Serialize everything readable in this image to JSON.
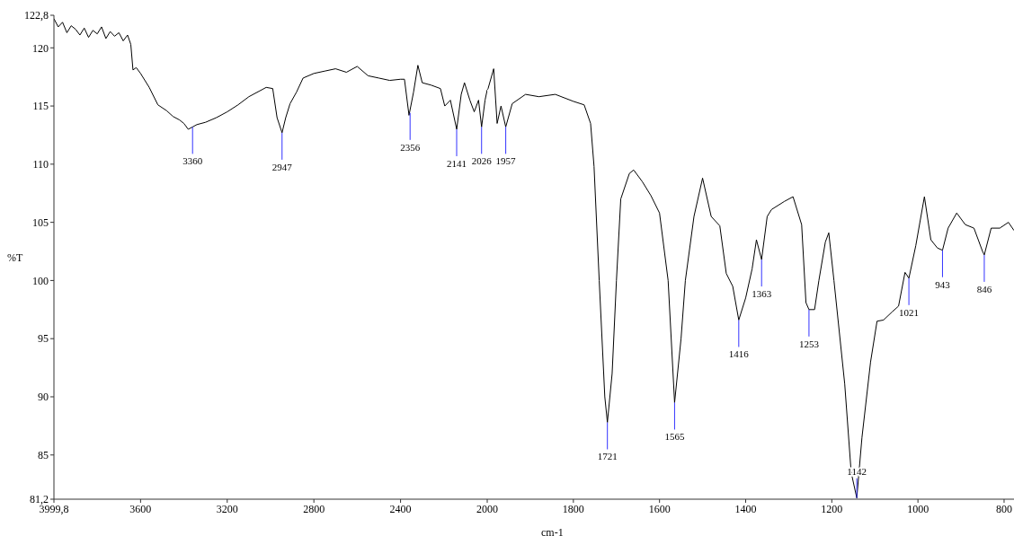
{
  "chart_data": [
    {
      "type": "line",
      "ylabel": "%T",
      "xlim": [
        3999.8,
        2000
      ],
      "ylim": [
        81.2,
        122.8
      ],
      "xticks": [
        {
          "value": 3999.8,
          "label": "3999,8"
        },
        3600,
        3200,
        2800,
        2400,
        2000
      ],
      "yticks": [
        {
          "value": 81.2,
          "label": "81,2"
        },
        85,
        90,
        95,
        100,
        105,
        110,
        115,
        120,
        {
          "value": 122.8,
          "label": "122,8"
        }
      ],
      "x": [
        3999.8,
        3980,
        3960,
        3940,
        3920,
        3900,
        3880,
        3860,
        3840,
        3820,
        3800,
        3780,
        3760,
        3740,
        3720,
        3700,
        3680,
        3660,
        3645,
        3635,
        3620,
        3600,
        3560,
        3520,
        3480,
        3450,
        3420,
        3400,
        3380,
        3360,
        3340,
        3300,
        3250,
        3200,
        3150,
        3100,
        3050,
        3020,
        2990,
        2970,
        2947,
        2930,
        2910,
        2880,
        2850,
        2800,
        2750,
        2700,
        2650,
        2600,
        2550,
        2500,
        2450,
        2400,
        2382,
        2361,
        2340,
        2320,
        2300,
        2260,
        2216,
        2196,
        2170,
        2141,
        2120,
        2105,
        2080,
        2060,
        2040,
        2026,
        2010,
        2000
      ],
      "series": [
        {
          "color": "#000000",
          "values": [
            122.5,
            121.8,
            122.2,
            121.3,
            121.9,
            121.6,
            121.1,
            121.7,
            120.9,
            121.5,
            121.2,
            121.8,
            120.8,
            121.4,
            121.0,
            121.3,
            120.6,
            121.1,
            120.3,
            118.1,
            118.3,
            117.8,
            116.6,
            115.1,
            114.6,
            114.1,
            113.8,
            113.5,
            113.0,
            113.2,
            113.4,
            113.6,
            114.0,
            114.5,
            115.1,
            115.8,
            116.3,
            116.6,
            116.5,
            114.0,
            112.7,
            114.0,
            115.2,
            116.2,
            117.4,
            117.8,
            118.0,
            118.2,
            117.9,
            118.4,
            117.6,
            117.4,
            117.2,
            117.3,
            117.3,
            114.2,
            116.2,
            118.5,
            117.0,
            116.8,
            116.5,
            115.0,
            115.5,
            113.0,
            116.0,
            117.0,
            115.5,
            114.5,
            115.5,
            113.2,
            115.5,
            116.4
          ]
        }
      ],
      "annotations": [
        {
          "text": "3360",
          "x": 3360,
          "y": 113.2
        },
        {
          "text": "2947",
          "x": 2947,
          "y": 112.7
        },
        {
          "text": "2356",
          "x": 2356,
          "y": 114.4
        },
        {
          "text": "2141",
          "x": 2141,
          "y": 113.0
        },
        {
          "text": "2026",
          "x": 2026,
          "y": 113.2
        }
      ]
    },
    {
      "type": "line",
      "xlabel": "cm-1",
      "tick_labels": "x",
      "xlim": [
        2000,
        777
      ],
      "ylim": [
        81.2,
        122.8
      ],
      "xticks": [
        1800,
        1600,
        1400,
        1200,
        1000,
        800
      ],
      "x": [
        2000,
        1998,
        1985,
        1977,
        1968,
        1957,
        1942,
        1911,
        1880,
        1842,
        1800,
        1775,
        1760,
        1752,
        1740,
        1727,
        1721,
        1710,
        1700,
        1690,
        1670,
        1660,
        1640,
        1620,
        1600,
        1580,
        1565,
        1550,
        1540,
        1520,
        1500,
        1480,
        1460,
        1445,
        1430,
        1416,
        1400,
        1385,
        1375,
        1363,
        1350,
        1340,
        1310,
        1290,
        1270,
        1260,
        1253,
        1240,
        1230,
        1215,
        1207,
        1195,
        1170,
        1155,
        1142,
        1130,
        1110,
        1095,
        1080,
        1060,
        1045,
        1030,
        1021,
        1005,
        985,
        970,
        955,
        943,
        930,
        910,
        890,
        870,
        850,
        846,
        830,
        810,
        790,
        777
      ],
      "series": [
        {
          "color": "#000000",
          "values": [
            116.4,
            116.5,
            118.2,
            113.5,
            115.0,
            113.2,
            115.2,
            116.0,
            115.8,
            116.0,
            115.4,
            115.1,
            113.5,
            109.8,
            100.0,
            90.0,
            87.8,
            92.0,
            100.0,
            107.0,
            109.2,
            109.5,
            108.5,
            107.3,
            105.8,
            100.0,
            89.5,
            95.0,
            100.0,
            105.5,
            108.8,
            105.5,
            104.7,
            100.6,
            99.5,
            96.6,
            98.5,
            101.0,
            103.5,
            101.8,
            105.5,
            106.1,
            106.8,
            107.2,
            104.8,
            98.1,
            97.5,
            97.5,
            100.0,
            103.3,
            104.1,
            100.0,
            91.1,
            83.5,
            81.3,
            86.5,
            93.0,
            96.5,
            96.6,
            97.3,
            97.8,
            100.7,
            100.2,
            103.0,
            107.2,
            103.5,
            102.8,
            102.6,
            104.5,
            105.8,
            104.8,
            104.5,
            102.5,
            102.2,
            104.5,
            104.5,
            105.0,
            104.3
          ]
        }
      ],
      "annotations": [
        {
          "text": "1957",
          "x": 1957,
          "y": 113.2
        },
        {
          "text": "1721",
          "x": 1721,
          "y": 87.8
        },
        {
          "text": "1565",
          "x": 1565,
          "y": 89.5
        },
        {
          "text": "1416",
          "x": 1416,
          "y": 96.6
        },
        {
          "text": "1363",
          "x": 1363,
          "y": 101.8
        },
        {
          "text": "1253",
          "x": 1253,
          "y": 97.5
        },
        {
          "text": "1142",
          "x": 1142,
          "y": 81.3
        },
        {
          "text": "1021",
          "x": 1021,
          "y": 100.2
        },
        {
          "text": "943",
          "x": 943,
          "y": 102.6
        },
        {
          "text": "846",
          "x": 846,
          "y": 102.2
        }
      ]
    }
  ]
}
